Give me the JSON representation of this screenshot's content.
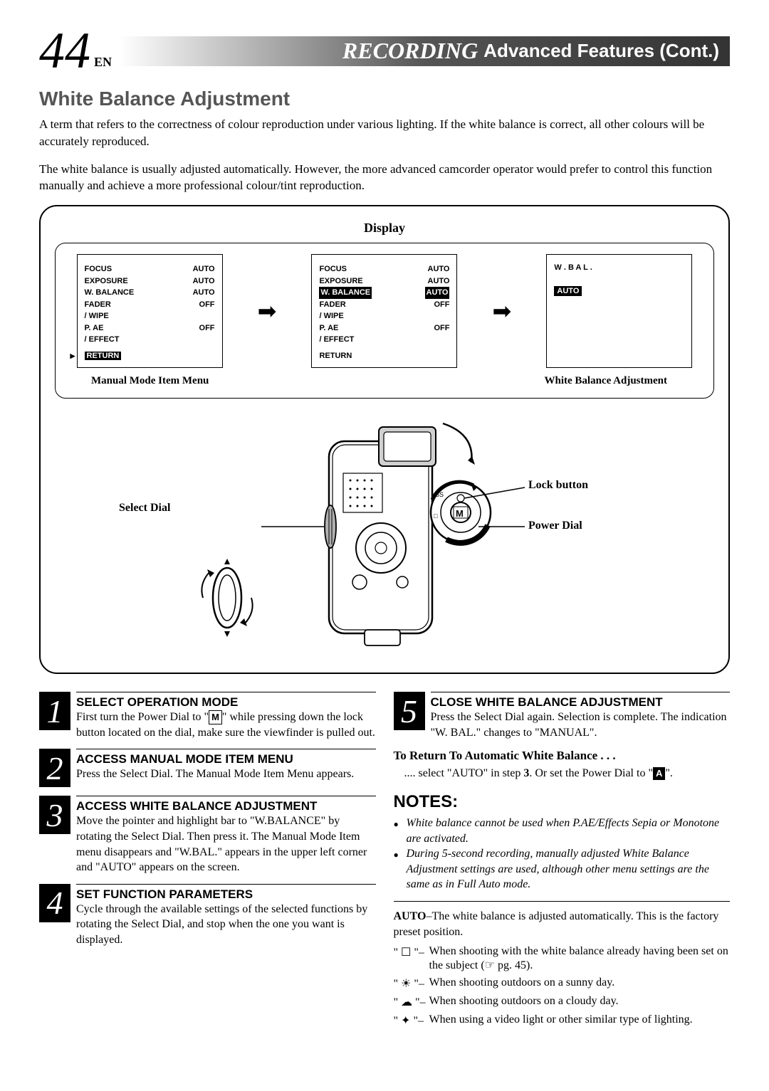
{
  "header": {
    "page_number": "44",
    "lang": "EN",
    "title_italic": "RECORDING",
    "title_rest": "Advanced Features (Cont.)"
  },
  "section_title": "White Balance Adjustment",
  "intro_p1": "A term that refers to the correctness of colour reproduction under various lighting. If the white balance is correct, all other colours will be accurately reproduced.",
  "intro_p2": "The white balance is usually adjusted automatically. However, the more advanced camcorder operator would prefer to control this function manually and achieve a more professional colour/tint reproduction.",
  "diagram": {
    "display_label": "Display",
    "screen1": {
      "rows": [
        {
          "label": "FOCUS",
          "value": "AUTO"
        },
        {
          "label": "EXPOSURE",
          "value": "AUTO"
        },
        {
          "label": "W. BALANCE",
          "value": "AUTO"
        },
        {
          "label": "FADER",
          "value": "OFF"
        },
        {
          "label": "  / WIPE",
          "value": ""
        },
        {
          "label": "P. AE",
          "value": "OFF"
        },
        {
          "label": "  / EFFECT",
          "value": ""
        }
      ],
      "return": "RETURN",
      "return_highlighted": true
    },
    "screen2": {
      "rows": [
        {
          "label": "FOCUS",
          "value": "AUTO"
        },
        {
          "label": "EXPOSURE",
          "value": "AUTO"
        },
        {
          "label": "W. BALANCE",
          "value": "AUTO",
          "highlighted": true
        },
        {
          "label": "FADER",
          "value": "OFF"
        },
        {
          "label": "  / WIPE",
          "value": ""
        },
        {
          "label": "P. AE",
          "value": "OFF"
        },
        {
          "label": "  / EFFECT",
          "value": ""
        }
      ],
      "return": "RETURN",
      "return_highlighted": false
    },
    "screen3": {
      "wbal_label": "W . B A L .",
      "auto_label": "AUTO"
    },
    "caption_left": "Manual Mode Item Menu",
    "caption_right": "White Balance Adjustment",
    "callouts": {
      "select_dial": "Select Dial",
      "lock_button": "Lock button",
      "power_dial": "Power Dial"
    }
  },
  "steps": [
    {
      "num": "1",
      "title": "SELECT OPERATION MODE",
      "body": "First turn the Power Dial to \"M\" while pressing down the lock button located on the dial, make sure the viewfinder is pulled out."
    },
    {
      "num": "2",
      "title": "ACCESS MANUAL MODE ITEM MENU",
      "body": "Press the Select Dial. The Manual Mode Item Menu appears."
    },
    {
      "num": "3",
      "title": "ACCESS WHITE BALANCE ADJUSTMENT",
      "body": "Move the pointer and highlight bar to \"W.BALANCE\" by rotating the Select Dial. Then press it. The Manual Mode Item menu disappears and \"W.BAL.\" appears in the upper left corner and \"AUTO\" appears on the screen."
    },
    {
      "num": "4",
      "title": "SET FUNCTION PARAMETERS",
      "body": "Cycle through the available settings of the selected functions by rotating the Select Dial, and stop when the one you want is displayed."
    },
    {
      "num": "5",
      "title": "CLOSE WHITE BALANCE ADJUSTMENT",
      "body": "Press the Select Dial again. Selection is complete. The indication \"W. BAL.\" changes to  \"MANUAL\"."
    }
  ],
  "return_auto": {
    "heading": "To Return To Automatic White Balance . . .",
    "body_prefix": ".... select \"AUTO\" in step ",
    "body_step": "3",
    "body_mid": ". Or set the Power Dial to \"",
    "body_suffix": "\"."
  },
  "notes": {
    "title": "NOTES:",
    "items": [
      "White balance cannot be used when P.AE/Effects Sepia or Monotone are activated.",
      "During 5-second recording, manually adjusted White Balance Adjustment settings are used, although other menu settings are the same as in Full Auto mode."
    ]
  },
  "modes": {
    "auto_label": "AUTO",
    "auto_desc": "–The white balance is adjusted automatically. This is the factory preset position.",
    "items": [
      {
        "icon": "☐",
        "text": "When shooting with the white balance already having been set on the subject (☞ pg. 45)."
      },
      {
        "icon": "☀",
        "text": "When shooting outdoors on a sunny day."
      },
      {
        "icon": "☁",
        "text": "When shooting outdoors on a cloudy day."
      },
      {
        "icon": "✦",
        "text": "When using a video light or other similar type of lighting."
      }
    ]
  }
}
